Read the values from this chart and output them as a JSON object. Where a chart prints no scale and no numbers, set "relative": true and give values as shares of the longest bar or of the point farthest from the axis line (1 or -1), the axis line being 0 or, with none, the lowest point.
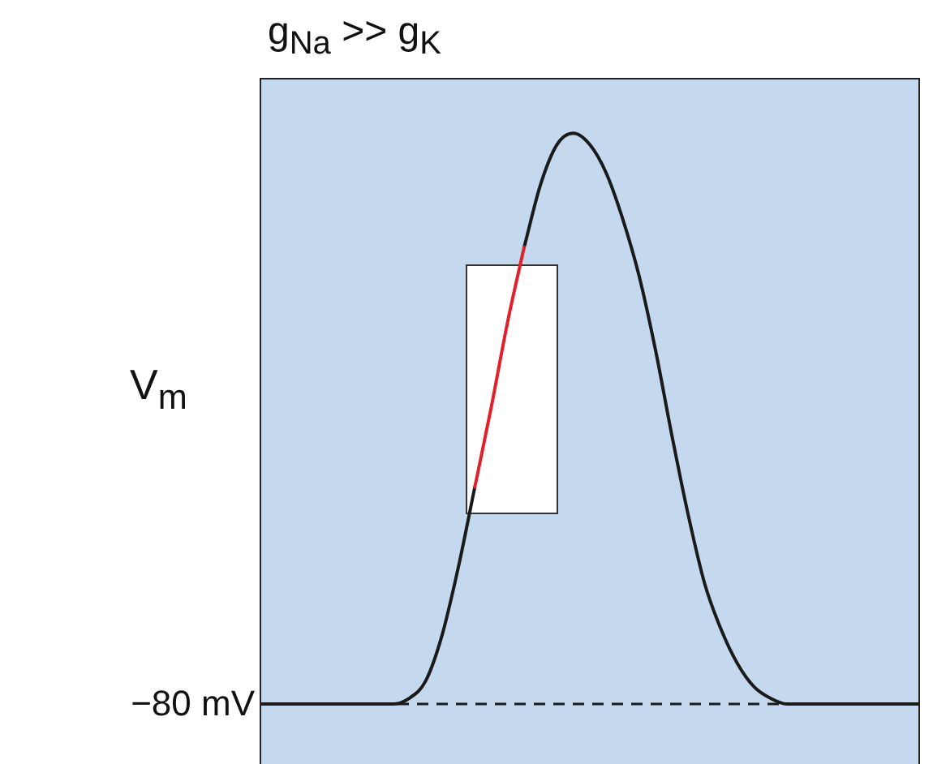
{
  "chart_data": {
    "type": "line",
    "title": "g$_{Na}$ >> g$_{K}$",
    "ylabel": "V$_{m}$",
    "relative": true,
    "tick_labels": false,
    "marker": "none",
    "line_style": "solid",
    "categories": [
      null,
      null,
      null,
      null,
      null,
      null,
      null,
      null,
      null,
      null,
      null,
      null,
      null,
      null,
      null,
      null,
      null,
      null,
      null,
      null,
      null,
      null,
      null,
      null,
      null,
      null,
      null,
      null,
      null,
      null,
      null,
      null,
      null,
      null,
      null,
      null,
      null,
      null,
      null,
      null,
      null
    ],
    "series": [
      {
        "color": "#1a1a1a",
        "values": [
          0,
          0,
          0,
          0,
          0,
          0,
          0,
          0,
          0,
          0.01,
          0.04,
          0.12,
          0.24,
          0.38,
          null,
          null,
          0.8,
          0.91,
          0.98,
          1,
          0.98,
          0.93,
          0.85,
          0.75,
          0.62,
          0.47,
          0.33,
          0.21,
          0.13,
          0.07,
          0.03,
          0.01,
          0,
          0,
          0,
          0,
          0,
          0,
          0,
          0,
          0
        ]
      },
      {
        "color": "#e0202a",
        "values": [
          null,
          null,
          null,
          null,
          null,
          null,
          null,
          null,
          null,
          null,
          null,
          null,
          null,
          0.38,
          0.52,
          0.67,
          0.8,
          null,
          null,
          null,
          null,
          null,
          null,
          null,
          null,
          null,
          null,
          null,
          null,
          null,
          null,
          null,
          null,
          null,
          null,
          null,
          null,
          null,
          null,
          null,
          null
        ]
      }
    ],
    "ref_lines": [
      {
        "axis": "y",
        "value": 0,
        "label": "−80 mV",
        "color": "#1a1a1a",
        "line_style": "dashed"
      }
    ]
  }
}
